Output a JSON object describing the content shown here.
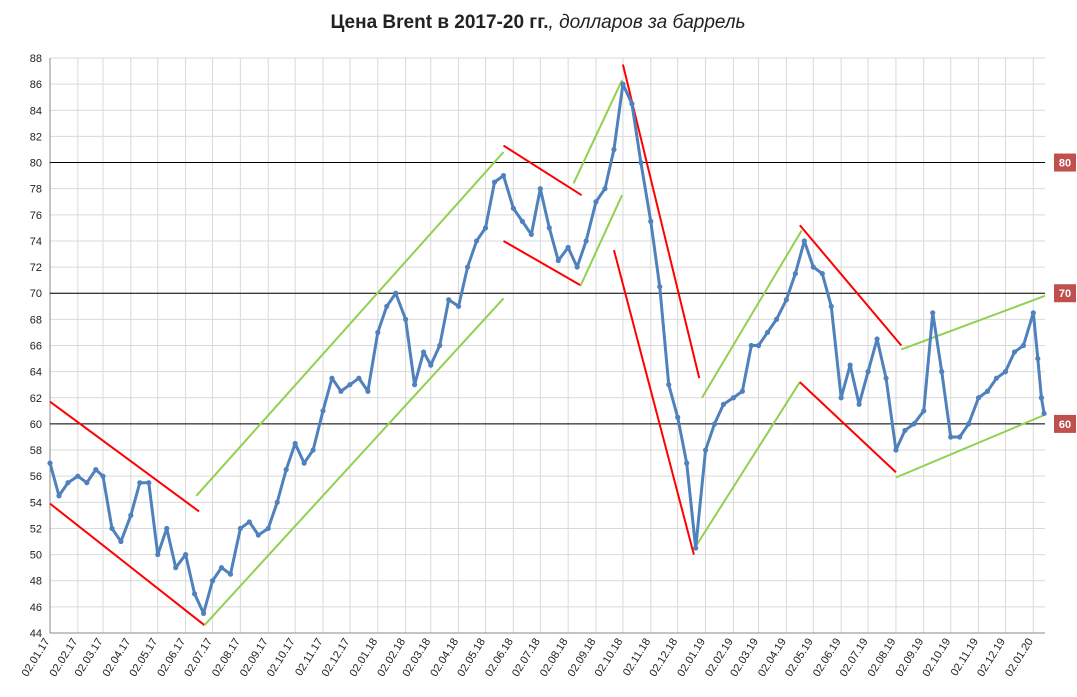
{
  "chart_data": {
    "type": "line",
    "title": "Цена Brent в 2017-20 гг.",
    "subtitle": ", долларов за баррель",
    "x": [
      "02.01.17",
      "12.01.17",
      "22.01.17",
      "02.02.17",
      "12.02.17",
      "22.02.17",
      "02.03.17",
      "12.03.17",
      "22.03.17",
      "02.04.17",
      "12.04.17",
      "22.04.17",
      "02.05.17",
      "12.05.17",
      "22.05.17",
      "02.06.17",
      "12.06.17",
      "22.06.17",
      "02.07.17",
      "12.07.17",
      "22.07.17",
      "02.08.17",
      "12.08.17",
      "22.08.17",
      "02.09.17",
      "12.09.17",
      "22.09.17",
      "02.10.17",
      "12.10.17",
      "22.10.17",
      "02.11.17",
      "12.11.17",
      "22.11.17",
      "02.12.17",
      "12.12.17",
      "22.12.17",
      "02.01.18",
      "12.01.18",
      "22.01.18",
      "02.02.18",
      "12.02.18",
      "22.02.18",
      "02.03.18",
      "12.03.18",
      "22.03.18",
      "02.04.18",
      "12.04.18",
      "22.04.18",
      "02.05.18",
      "12.05.18",
      "22.05.18",
      "02.06.18",
      "12.06.18",
      "22.06.18",
      "02.07.18",
      "12.07.18",
      "22.07.18",
      "02.08.18",
      "12.08.18",
      "22.08.18",
      "02.09.18",
      "12.09.18",
      "22.09.18",
      "02.10.18",
      "12.10.18",
      "22.10.18",
      "02.11.18",
      "12.11.18",
      "22.11.18",
      "02.12.18",
      "12.12.18",
      "22.12.18",
      "02.01.19",
      "12.01.19",
      "22.01.19",
      "02.02.19",
      "12.02.19",
      "22.02.19",
      "02.03.19",
      "12.03.19",
      "22.03.19",
      "02.04.19",
      "12.04.19",
      "22.04.19",
      "02.05.19",
      "12.05.19",
      "22.05.19",
      "02.06.19",
      "12.06.19",
      "22.06.19",
      "02.07.19",
      "12.07.19",
      "22.07.19",
      "02.08.19",
      "12.08.19",
      "22.08.19",
      "02.09.19",
      "12.09.19",
      "22.09.19",
      "02.10.19",
      "12.10.19",
      "22.10.19",
      "02.11.19",
      "12.11.19",
      "22.11.19",
      "02.12.19",
      "12.12.19",
      "22.12.19",
      "02.01.20",
      "07.01.20",
      "11.01.20",
      "14.01.20"
    ],
    "series": [
      {
        "color": "#4f81bd",
        "values": [
          57,
          54.5,
          55.5,
          56,
          55.5,
          56.5,
          56,
          52,
          51,
          53,
          55.5,
          55.5,
          50,
          52,
          49,
          50,
          47,
          45.5,
          48,
          49,
          48.5,
          52,
          52.5,
          51.5,
          52,
          54,
          56.5,
          58.5,
          57,
          58,
          61,
          63.5,
          62.5,
          63,
          63.5,
          62.5,
          67,
          69,
          70,
          68,
          63,
          65.5,
          64.5,
          66,
          69.5,
          69,
          72,
          74,
          75,
          78.5,
          79,
          76.5,
          75.5,
          74.5,
          78,
          75,
          72.5,
          73.5,
          72,
          74,
          77,
          78,
          81,
          86,
          84.5,
          80,
          75.5,
          70.5,
          63,
          60.5,
          57,
          50.5,
          58,
          60,
          61.5,
          62,
          62.5,
          66,
          66,
          67,
          68,
          69.5,
          71.5,
          74,
          72,
          71.5,
          69,
          62,
          64.5,
          61.5,
          64,
          66.5,
          63.5,
          58,
          59.5,
          60,
          61,
          68.5,
          64,
          59,
          59,
          60,
          62,
          62.5,
          63.5,
          64,
          65.5,
          66,
          68.5,
          65,
          62,
          60.8
        ]
      }
    ],
    "trend_lines": [
      {
        "color": "#ff0000",
        "x": [
          "02.01.17",
          "17.06.17"
        ],
        "y": [
          61.7,
          53.3
        ]
      },
      {
        "color": "#ff0000",
        "x": [
          "02.01.17",
          "23.06.17"
        ],
        "y": [
          53.9,
          44.6
        ]
      },
      {
        "color": "#92d050",
        "x": [
          "14.06.17",
          "22.05.18"
        ],
        "y": [
          54.5,
          80.8
        ]
      },
      {
        "color": "#92d050",
        "x": [
          "23.06.17",
          "22.05.18"
        ],
        "y": [
          44.6,
          69.6
        ]
      },
      {
        "color": "#ff0000",
        "x": [
          "22.05.18",
          "17.08.18"
        ],
        "y": [
          81.3,
          77.5
        ]
      },
      {
        "color": "#ff0000",
        "x": [
          "22.05.18",
          "16.08.18"
        ],
        "y": [
          74,
          70.6
        ]
      },
      {
        "color": "#92d050",
        "x": [
          "08.08.18",
          "01.10.18"
        ],
        "y": [
          78.4,
          86.3
        ]
      },
      {
        "color": "#92d050",
        "x": [
          "16.08.18",
          "01.10.18"
        ],
        "y": [
          70.6,
          77.5
        ]
      },
      {
        "color": "#ff0000",
        "x": [
          "02.10.18",
          "26.12.18"
        ],
        "y": [
          87.5,
          63.5
        ]
      },
      {
        "color": "#ff0000",
        "x": [
          "22.09.18",
          "20.12.18"
        ],
        "y": [
          73.3,
          50
        ]
      },
      {
        "color": "#92d050",
        "x": [
          "29.12.18",
          "19.04.19"
        ],
        "y": [
          62,
          74.8
        ]
      },
      {
        "color": "#92d050",
        "x": [
          "20.12.18",
          "17.04.19"
        ],
        "y": [
          50.4,
          63.2
        ]
      },
      {
        "color": "#ff0000",
        "x": [
          "17.04.19",
          "08.08.19"
        ],
        "y": [
          75.2,
          66
        ]
      },
      {
        "color": "#ff0000",
        "x": [
          "17.04.19",
          "02.08.19"
        ],
        "y": [
          63.2,
          56.3
        ]
      },
      {
        "color": "#92d050",
        "x": [
          "08.08.19",
          "15.01.20"
        ],
        "y": [
          65.7,
          69.8
        ]
      },
      {
        "color": "#92d050",
        "x": [
          "02.08.19",
          "15.01.20"
        ],
        "y": [
          55.9,
          60.7
        ]
      }
    ],
    "reference_lines": [
      80,
      70,
      60
    ],
    "reference_color": "#c0504d",
    "xlim": [
      "02.01.17",
      "15.01.20"
    ],
    "xticks": [
      "02.01.17",
      "02.02.17",
      "02.03.17",
      "02.04.17",
      "02.05.17",
      "02.06.17",
      "02.07.17",
      "02.08.17",
      "02.09.17",
      "02.10.17",
      "02.11.17",
      "02.12.17",
      "02.01.18",
      "02.02.18",
      "02.03.18",
      "02.04.18",
      "02.05.18",
      "02.06.18",
      "02.07.18",
      "02.08.18",
      "02.09.18",
      "02.10.18",
      "02.11.18",
      "02.12.18",
      "02.01.19",
      "02.02.19",
      "02.03.19",
      "02.04.19",
      "02.05.19",
      "02.06.19",
      "02.07.19",
      "02.08.19",
      "02.09.19",
      "02.10.19",
      "02.11.19",
      "02.12.19",
      "02.01.20"
    ],
    "ylim": [
      44,
      88
    ],
    "yticks": [
      44,
      46,
      48,
      50,
      52,
      54,
      56,
      58,
      60,
      62,
      64,
      66,
      68,
      70,
      72,
      74,
      76,
      78,
      80,
      82,
      84,
      86,
      88
    ],
    "grid": true
  }
}
